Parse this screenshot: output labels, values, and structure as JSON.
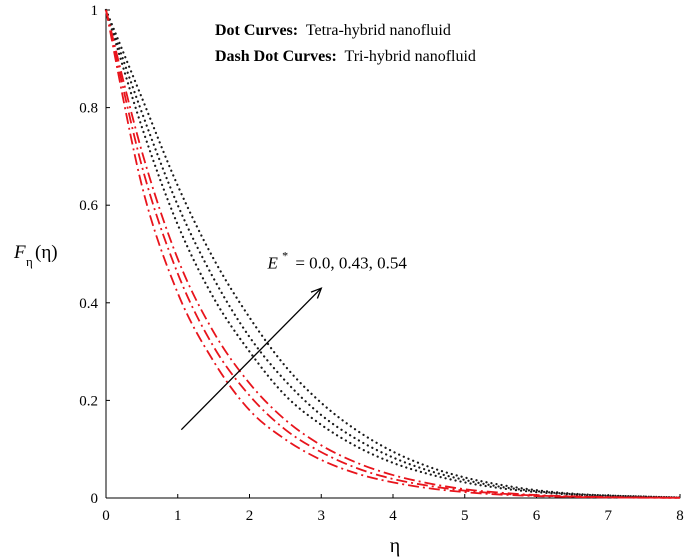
{
  "chart_data": {
    "type": "line",
    "title": "",
    "xlabel": "η",
    "ylabel": {
      "main": "F",
      "sub": "η",
      "arg": "(η)"
    },
    "xlim": [
      0,
      8
    ],
    "ylim": [
      0,
      1
    ],
    "x_ticks": [
      "0",
      "1",
      "2",
      "3",
      "4",
      "5",
      "6",
      "7",
      "8"
    ],
    "y_ticks": [
      "0",
      "0.2",
      "0.4",
      "0.6",
      "0.8",
      "1"
    ],
    "grid": false,
    "legend": {
      "line1": {
        "key": "Dot Curves:",
        "text": "Tetra-hybrid nanofluid"
      },
      "line2": {
        "key": "Dash Dot Curves:",
        "text": "Tri-hybrid nanofluid"
      }
    },
    "annotation": {
      "symbol": "E",
      "superscript": "*",
      "text": "= 0.0, 0.43, 0.54",
      "arrow_from": [
        1.05,
        0.14
      ],
      "arrow_to": [
        3.0,
        0.43
      ],
      "label_pos": [
        2.25,
        0.47
      ]
    },
    "series": [
      {
        "group": "Tetra-hybrid nanofluid",
        "style": "dot",
        "color": "#1a1a1a",
        "x": [
          0,
          0.5,
          1,
          1.5,
          2,
          2.5,
          3,
          3.5,
          4,
          4.5,
          5,
          5.5,
          6,
          6.5,
          7,
          7.5,
          8
        ],
        "y": [
          1.0,
          0.76,
          0.56,
          0.41,
          0.3,
          0.21,
          0.15,
          0.105,
          0.072,
          0.049,
          0.032,
          0.02,
          0.012,
          0.007,
          0.004,
          0.002,
          0.001
        ]
      },
      {
        "group": "Tetra-hybrid nanofluid",
        "style": "dot",
        "color": "#1a1a1a",
        "x": [
          0,
          0.5,
          1,
          1.5,
          2,
          2.5,
          3,
          3.5,
          4,
          4.5,
          5,
          5.5,
          6,
          6.5,
          7,
          7.5,
          8
        ],
        "y": [
          1.0,
          0.79,
          0.6,
          0.45,
          0.33,
          0.24,
          0.17,
          0.12,
          0.083,
          0.056,
          0.037,
          0.023,
          0.014,
          0.008,
          0.005,
          0.003,
          0.001
        ]
      },
      {
        "group": "Tetra-hybrid nanofluid",
        "style": "dot",
        "color": "#1a1a1a",
        "x": [
          0,
          0.5,
          1,
          1.5,
          2,
          2.5,
          3,
          3.5,
          4,
          4.5,
          5,
          5.5,
          6,
          6.5,
          7,
          7.5,
          8
        ],
        "y": [
          1.0,
          0.82,
          0.64,
          0.49,
          0.37,
          0.27,
          0.195,
          0.138,
          0.095,
          0.064,
          0.042,
          0.027,
          0.016,
          0.009,
          0.005,
          0.003,
          0.001
        ]
      },
      {
        "group": "Tri-hybrid nanofluid",
        "style": "dashdot",
        "color": "#e8141c",
        "x": [
          0,
          0.5,
          1,
          1.5,
          2,
          2.5,
          3,
          3.5,
          4,
          4.5,
          5,
          5.5,
          6,
          6.5,
          7,
          7.5,
          8
        ],
        "y": [
          1.0,
          0.64,
          0.42,
          0.28,
          0.18,
          0.12,
          0.078,
          0.05,
          0.032,
          0.02,
          0.012,
          0.007,
          0.004,
          0.002,
          0.001,
          0.0006,
          0.0003
        ]
      },
      {
        "group": "Tri-hybrid nanofluid",
        "style": "dashdot",
        "color": "#e8141c",
        "x": [
          0,
          0.5,
          1,
          1.5,
          2,
          2.5,
          3,
          3.5,
          4,
          4.5,
          5,
          5.5,
          6,
          6.5,
          7,
          7.5,
          8
        ],
        "y": [
          1.0,
          0.68,
          0.46,
          0.31,
          0.21,
          0.14,
          0.094,
          0.061,
          0.039,
          0.025,
          0.015,
          0.009,
          0.005,
          0.003,
          0.0015,
          0.0008,
          0.0004
        ]
      },
      {
        "group": "Tri-hybrid nanofluid",
        "style": "dashdot",
        "color": "#e8141c",
        "x": [
          0,
          0.5,
          1,
          1.5,
          2,
          2.5,
          3,
          3.5,
          4,
          4.5,
          5,
          5.5,
          6,
          6.5,
          7,
          7.5,
          8
        ],
        "y": [
          1.0,
          0.71,
          0.49,
          0.34,
          0.235,
          0.16,
          0.108,
          0.072,
          0.047,
          0.03,
          0.018,
          0.011,
          0.006,
          0.0035,
          0.002,
          0.001,
          0.0005
        ]
      }
    ]
  }
}
